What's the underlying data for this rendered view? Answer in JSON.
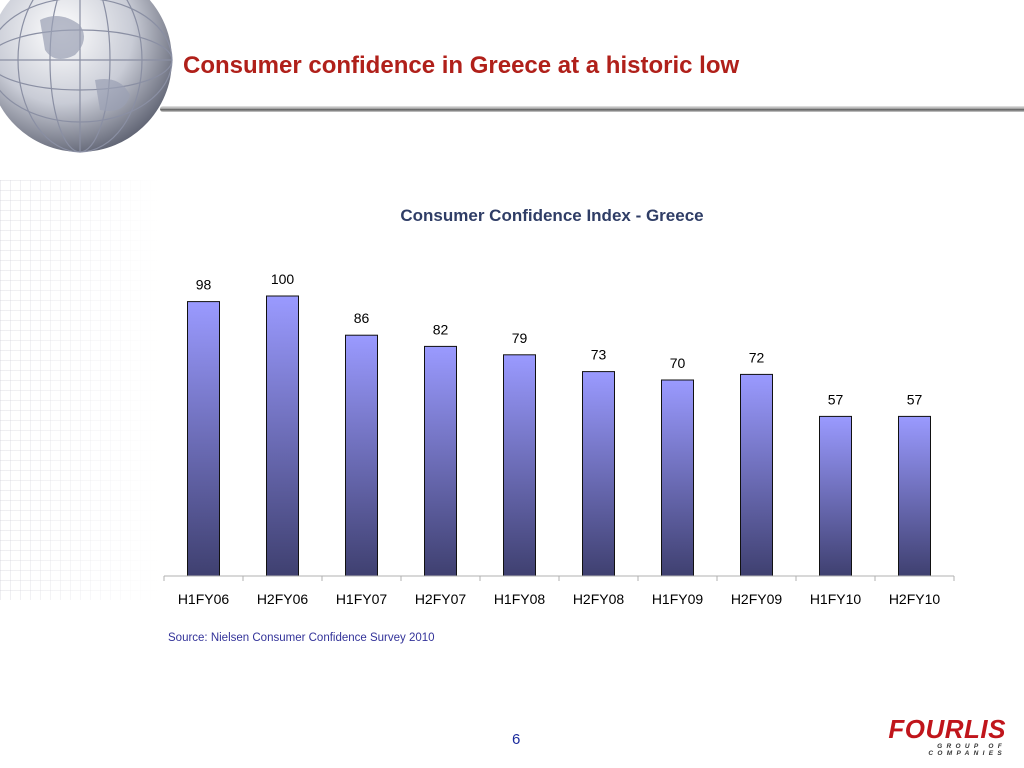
{
  "slide": {
    "title": "Consumer confidence in Greece at a historic low",
    "source": "Source: Nielsen Consumer Confidence Survey 2010",
    "page_number": "6"
  },
  "logo": {
    "name": "FOURLIS",
    "tagline": "GROUP OF COMPANIES"
  },
  "colors": {
    "title": "#b0201a",
    "bar_top": "#9a9aff",
    "bar_bottom": "#3f4070",
    "logo": "#c0151b"
  },
  "chart_data": {
    "type": "bar",
    "title": "Consumer Confidence Index - Greece",
    "categories": [
      "H1FY06",
      "H2FY06",
      "H1FY07",
      "H2FY07",
      "H1FY08",
      "H2FY08",
      "H1FY09",
      "H2FY09",
      "H1FY10",
      "H2FY10"
    ],
    "values": [
      98,
      100,
      86,
      82,
      79,
      73,
      70,
      72,
      57,
      57
    ],
    "data_labels": [
      "98",
      "100",
      "86",
      "82",
      "79",
      "73",
      "70",
      "72",
      "57",
      "57"
    ],
    "xlabel": "",
    "ylabel": "",
    "ylim": [
      0,
      100
    ],
    "grid": false,
    "legend": "none"
  }
}
